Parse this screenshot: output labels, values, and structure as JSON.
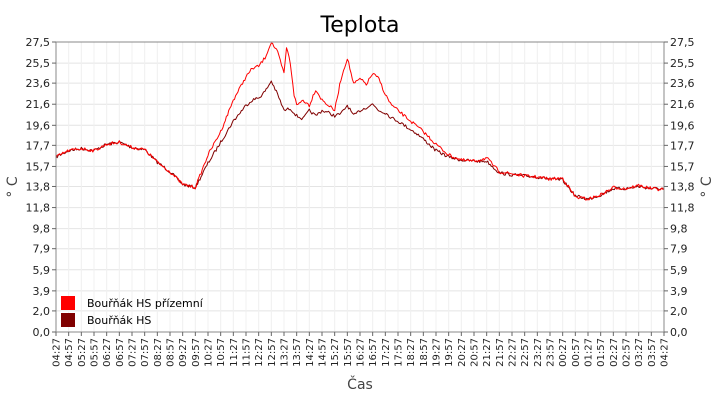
{
  "chart_data": {
    "type": "line",
    "title": "Teplota",
    "xlabel": "Čas",
    "ylabel": "° C",
    "ylabel_right": "° C",
    "grid": true,
    "legend_position": "bottom-left",
    "y_ticks": [
      "0,0",
      "2,0",
      "3,9",
      "5,9",
      "7,9",
      "9,8",
      "11,8",
      "13,8",
      "15,7",
      "17,7",
      "19,6",
      "21,6",
      "23,6",
      "25,5",
      "27,5"
    ],
    "ylim": [
      0,
      27.5
    ],
    "x_ticks": [
      "04:27",
      "04:57",
      "05:27",
      "05:57",
      "06:27",
      "06:57",
      "07:27",
      "07:57",
      "08:27",
      "08:57",
      "09:27",
      "09:57",
      "10:27",
      "10:57",
      "11:27",
      "11:57",
      "12:27",
      "12:57",
      "13:27",
      "13:57",
      "14:27",
      "14:57",
      "15:27",
      "15:57",
      "16:27",
      "16:57",
      "17:27",
      "17:57",
      "18:27",
      "18:57",
      "19:27",
      "19:57",
      "20:27",
      "20:57",
      "21:27",
      "21:57",
      "22:27",
      "22:57",
      "23:27",
      "23:57",
      "00:27",
      "00:57",
      "01:27",
      "01:57",
      "02:27",
      "02:57",
      "03:27",
      "03:57",
      "04:27"
    ],
    "series": [
      {
        "name": "Bouřňák HS přízemní",
        "color": "#ff0000",
        "x": [
          0,
          1,
          2,
          3,
          4,
          5,
          6,
          7,
          8,
          9,
          10,
          11,
          12,
          13,
          14,
          15,
          15.5,
          16,
          16.5,
          17,
          17.5,
          18,
          18.2,
          18.5,
          18.8,
          19,
          19.5,
          20,
          20.5,
          21,
          21.5,
          22,
          22.5,
          23,
          23.5,
          24,
          24.5,
          25,
          25.5,
          26,
          26.5,
          27,
          27.5,
          28,
          28.5,
          29,
          30,
          31,
          32,
          33,
          34,
          35,
          36,
          37,
          38,
          39,
          40,
          41,
          42,
          43,
          44,
          45,
          46,
          47,
          48
        ],
        "values": [
          16.6,
          17.2,
          17.4,
          17.2,
          17.8,
          18.0,
          17.5,
          17.3,
          16.1,
          15.2,
          14.0,
          13.7,
          16.8,
          19.0,
          22.0,
          24.2,
          25.0,
          25.2,
          26.0,
          27.5,
          26.5,
          24.5,
          27.0,
          25.5,
          22.5,
          21.5,
          22.0,
          21.5,
          23.0,
          22.0,
          21.5,
          21.0,
          24.0,
          26.0,
          23.5,
          24.0,
          23.5,
          24.5,
          24.0,
          22.5,
          21.5,
          21.0,
          20.5,
          20.0,
          19.5,
          19.0,
          17.8,
          16.8,
          16.3,
          16.2,
          16.5,
          15.2,
          15.0,
          14.8,
          14.7,
          14.5,
          14.6,
          12.8,
          12.6,
          13.0,
          13.7,
          13.6,
          13.9,
          13.6,
          13.5
        ]
      },
      {
        "name": "Bouřňák HS",
        "color": "#800000",
        "x": [
          0,
          1,
          2,
          3,
          4,
          5,
          6,
          7,
          8,
          9,
          10,
          11,
          12,
          13,
          14,
          15,
          15.5,
          16,
          16.5,
          17,
          17.5,
          18,
          18.5,
          19,
          19.5,
          20,
          20.5,
          21,
          21.5,
          22,
          22.5,
          23,
          23.5,
          24,
          24.5,
          25,
          25.5,
          26,
          26.5,
          27,
          27.5,
          28,
          28.5,
          29,
          30,
          31,
          32,
          33,
          34,
          35,
          36,
          37,
          38,
          39,
          40,
          41,
          42,
          43,
          44,
          45,
          46,
          47,
          48
        ],
        "values": [
          16.6,
          17.2,
          17.4,
          17.2,
          17.8,
          18.0,
          17.5,
          17.3,
          16.1,
          15.2,
          14.0,
          13.7,
          16.0,
          18.0,
          20.0,
          21.5,
          22.0,
          22.2,
          22.8,
          23.8,
          22.5,
          21.0,
          21.2,
          20.5,
          20.2,
          21.0,
          20.5,
          21.0,
          20.8,
          20.5,
          20.7,
          21.5,
          20.5,
          21.0,
          21.3,
          21.6,
          21.0,
          20.8,
          20.3,
          20.0,
          19.6,
          19.2,
          18.8,
          18.3,
          17.2,
          16.6,
          16.3,
          16.2,
          16.2,
          15.1,
          14.9,
          14.8,
          14.7,
          14.5,
          14.4,
          12.9,
          12.6,
          13.0,
          13.6,
          13.6,
          13.8,
          13.6,
          13.6
        ]
      }
    ]
  }
}
